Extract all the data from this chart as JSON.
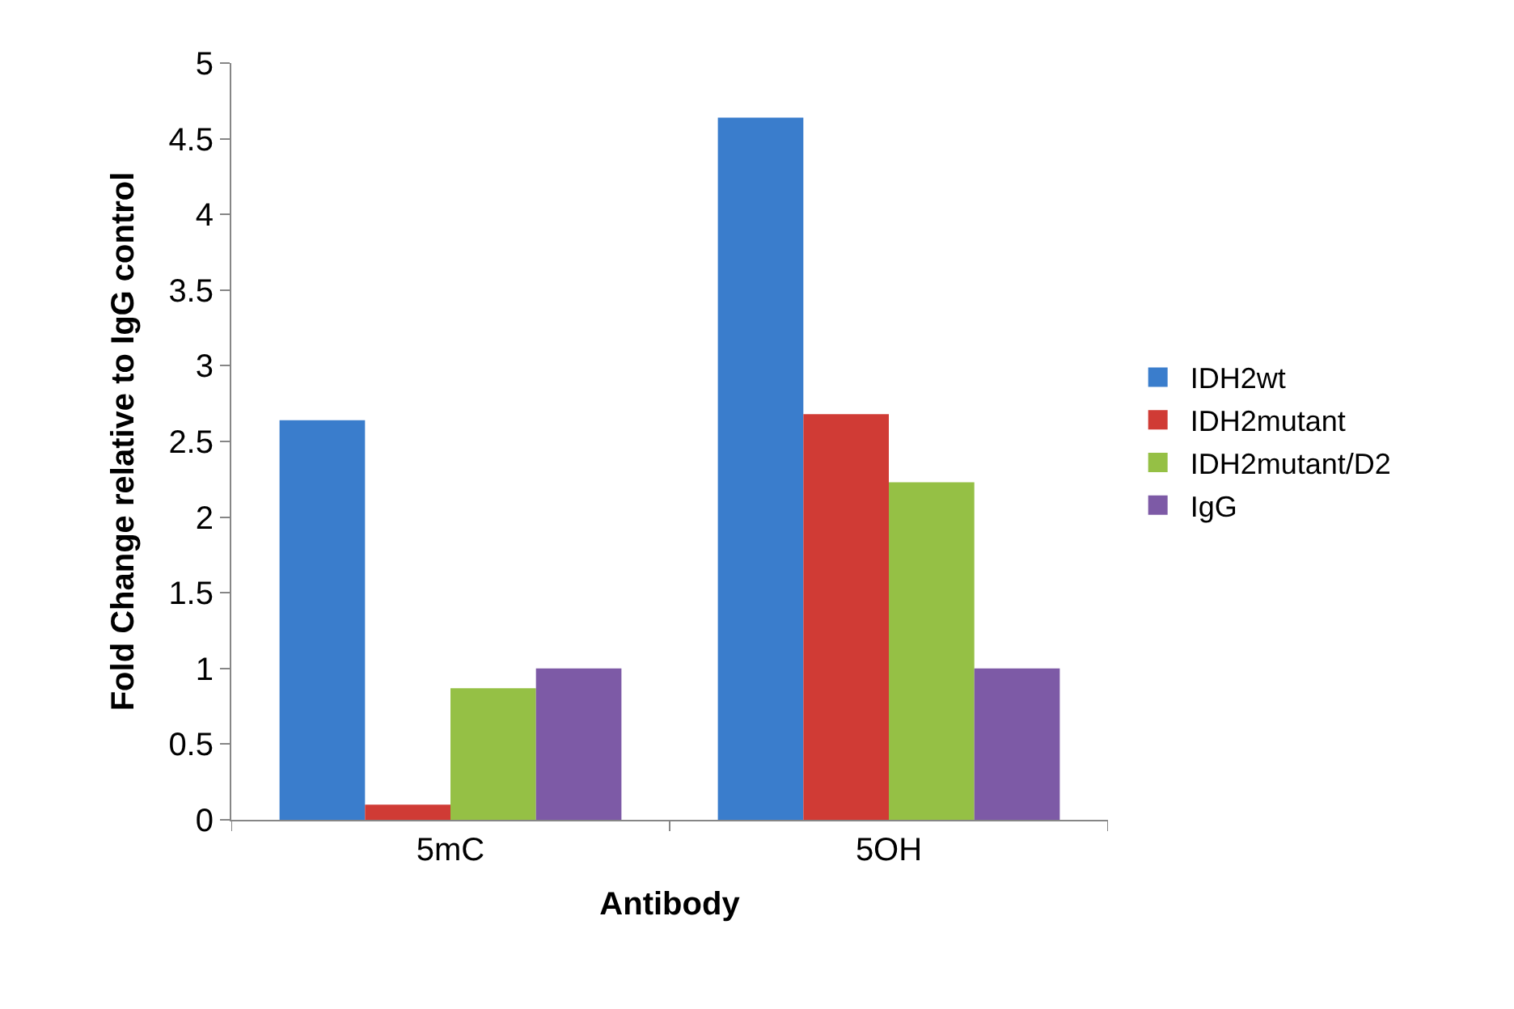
{
  "chart_data": {
    "type": "bar",
    "xlabel": "Antibody",
    "ylabel": "Fold Change relative to IgG control",
    "categories": [
      "5mC",
      "5OH"
    ],
    "series": [
      {
        "name": "IDH2wt",
        "color": "#3a7dcc",
        "values": [
          2.64,
          4.64
        ]
      },
      {
        "name": "IDH2mutant",
        "color": "#d03b35",
        "values": [
          0.1,
          2.68
        ]
      },
      {
        "name": "IDH2mutant/D2",
        "color": "#95c045",
        "values": [
          0.87,
          2.23
        ]
      },
      {
        "name": "IgG",
        "color": "#7d5aa6",
        "values": [
          1.0,
          1.0
        ]
      }
    ],
    "ylim": [
      0,
      5
    ],
    "yticks": [
      0,
      0.5,
      1,
      1.5,
      2,
      2.5,
      3,
      3.5,
      4,
      4.5,
      5
    ],
    "legend": "right"
  }
}
